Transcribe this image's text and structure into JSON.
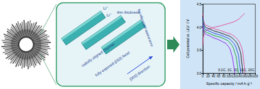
{
  "chart_data": {
    "type": "line",
    "x_label": "Specific capacity / mA h g⁻¹",
    "y_label": "Cell potential vs. Li/Li⁺ / V",
    "annotation": "0.1C, 1C, 5C, 10C, 20C",
    "xlim": [
      0,
      200
    ],
    "xticks": [
      0,
      20,
      40,
      60,
      80,
      100,
      120,
      140,
      160,
      180,
      200
    ],
    "ylim": [
      3.0,
      4.5
    ],
    "yticks": [
      {
        "value": 3.0,
        "label": "3.0"
      },
      3.5,
      {
        "value": 4.0,
        "label": "4.0"
      },
      4.5
    ],
    "grid": false,
    "series": [
      {
        "color": "#e0559a",
        "x": [
          0,
          5,
          20,
          80,
          130,
          150,
          160
        ],
        "values": [
          3.6,
          3.85,
          3.95,
          4.05,
          4.15,
          4.25,
          4.3
        ]
      },
      {
        "color": "#e0559a",
        "x": [
          0,
          5,
          30,
          80,
          120,
          145,
          155,
          160
        ],
        "values": [
          4.3,
          4.1,
          4.0,
          3.9,
          3.8,
          3.6,
          3.3,
          3.0
        ]
      },
      {
        "color": "#222222",
        "x": [
          0,
          5,
          30,
          80,
          115,
          138,
          148,
          152
        ],
        "values": [
          4.25,
          4.05,
          3.95,
          3.85,
          3.75,
          3.55,
          3.25,
          3.0
        ]
      },
      {
        "color": "#2a4bd7",
        "x": [
          0,
          5,
          30,
          80,
          110,
          130,
          140,
          144
        ],
        "values": [
          4.2,
          4.0,
          3.9,
          3.8,
          3.7,
          3.5,
          3.2,
          3.0
        ]
      },
      {
        "color": "#1f9e3a",
        "x": [
          0,
          5,
          30,
          80,
          105,
          122,
          131,
          135
        ],
        "values": [
          4.15,
          3.95,
          3.85,
          3.75,
          3.65,
          3.45,
          3.2,
          3.0
        ]
      },
      {
        "color": "#8a2be2",
        "x": [
          0,
          5,
          30,
          70,
          95,
          110,
          118,
          122
        ],
        "values": [
          4.1,
          3.9,
          3.8,
          3.7,
          3.6,
          3.4,
          3.15,
          3.0
        ]
      }
    ]
  },
  "diagram": {
    "labels": [
      "Li⁺",
      "Li⁺",
      "thin thickness",
      "flat ellipsoidal appearance",
      "radially aligned channel",
      "fully exposed (010) facet",
      "[001] direction"
    ]
  }
}
